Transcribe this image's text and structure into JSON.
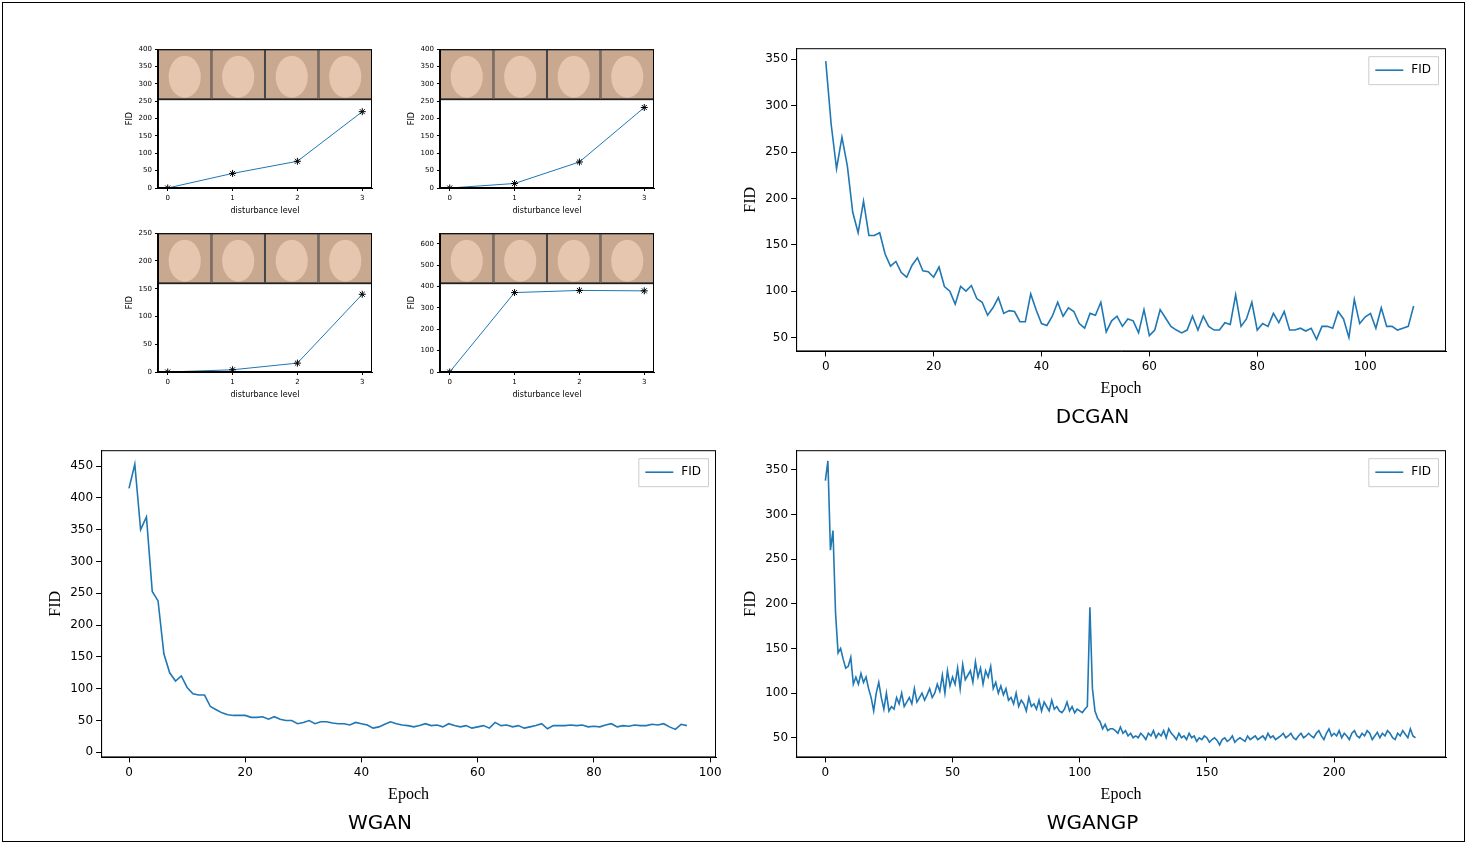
{
  "chart_data": [
    {
      "type": "line",
      "x": [
        0,
        1,
        2,
        3
      ],
      "values": [
        0,
        42,
        77,
        220
      ],
      "color": "#1f77b4",
      "marker": "star",
      "x_label": "disturbance level",
      "y_label": "FID",
      "xlim": [
        -0.15,
        3.15
      ],
      "ylim": [
        0,
        400
      ],
      "xticks": [
        0,
        1,
        2,
        3
      ],
      "yticks": [
        0,
        50,
        100,
        150,
        200,
        250,
        300,
        350,
        400
      ]
    },
    {
      "type": "line",
      "x": [
        0,
        1,
        2,
        3
      ],
      "values": [
        0,
        13,
        75,
        232
      ],
      "color": "#1f77b4",
      "marker": "star",
      "x_label": "disturbance level",
      "y_label": "FID",
      "xlim": [
        -0.15,
        3.15
      ],
      "ylim": [
        0,
        400
      ],
      "xticks": [
        0,
        1,
        2,
        3
      ],
      "yticks": [
        0,
        50,
        100,
        150,
        200,
        250,
        300,
        350,
        400
      ]
    },
    {
      "type": "line",
      "x": [
        0,
        1,
        2,
        3
      ],
      "values": [
        0,
        4,
        16,
        140
      ],
      "color": "#1f77b4",
      "marker": "star",
      "x_label": "disturbance level",
      "y_label": "FID",
      "xlim": [
        -0.15,
        3.15
      ],
      "ylim": [
        0,
        250
      ],
      "xticks": [
        0,
        1,
        2,
        3
      ],
      "yticks": [
        0,
        50,
        100,
        150,
        200,
        250
      ]
    },
    {
      "type": "line",
      "x": [
        0,
        1,
        2,
        3
      ],
      "values": [
        0,
        372,
        382,
        380
      ],
      "color": "#1f77b4",
      "marker": "star",
      "x_label": "disturbance level",
      "y_label": "FID",
      "xlim": [
        -0.15,
        3.15
      ],
      "ylim": [
        0,
        650
      ],
      "xticks": [
        0,
        1,
        2,
        3
      ],
      "yticks": [
        0,
        100,
        200,
        300,
        400,
        500,
        600
      ]
    },
    {
      "type": "line",
      "title": "DCGAN",
      "x_label": "Epoch",
      "y_label": "FID",
      "legend": "upper right",
      "xlim": [
        -5.5,
        115
      ],
      "ylim": [
        35,
        362
      ],
      "xticks": [
        0,
        20,
        40,
        60,
        80,
        100
      ],
      "yticks": [
        50,
        100,
        150,
        200,
        250,
        300,
        350
      ],
      "x": [
        0,
        1,
        2,
        3,
        4,
        5,
        6,
        7,
        8,
        9,
        10,
        11,
        12,
        13,
        14,
        15,
        16,
        17,
        18,
        19,
        20,
        21,
        22,
        23,
        24,
        25,
        26,
        27,
        28,
        29,
        30,
        31,
        32,
        33,
        34,
        35,
        36,
        37,
        38,
        39,
        40,
        41,
        42,
        43,
        44,
        45,
        46,
        47,
        48,
        49,
        50,
        51,
        52,
        53,
        54,
        55,
        56,
        57,
        58,
        59,
        60,
        61,
        62,
        63,
        64,
        65,
        66,
        67,
        68,
        69,
        70,
        71,
        72,
        73,
        74,
        75,
        76,
        77,
        78,
        79,
        80,
        81,
        82,
        83,
        84,
        85,
        86,
        87,
        88,
        89,
        90,
        91,
        92,
        93,
        94,
        95,
        96,
        97,
        98,
        99,
        100,
        101,
        102,
        103,
        104,
        105,
        106,
        107,
        108,
        109
      ],
      "series": [
        {
          "name": "FID",
          "color": "#1f77b4",
          "values": [
            348,
            280,
            232,
            266,
            235,
            185,
            163,
            197,
            160,
            160,
            163,
            140,
            127,
            132,
            120,
            115,
            128,
            136,
            122,
            121,
            115,
            126,
            105,
            100,
            86,
            105,
            100,
            106,
            92,
            88,
            74,
            82,
            93,
            76,
            79,
            78,
            67,
            67,
            97,
            80,
            65,
            63,
            73,
            88,
            73,
            82,
            78,
            65,
            60,
            76,
            74,
            88,
            56,
            68,
            73,
            62,
            70,
            68,
            55,
            80,
            52,
            58,
            80,
            71,
            62,
            58,
            55,
            58,
            73,
            58,
            73,
            62,
            58,
            58,
            66,
            64,
            96,
            62,
            70,
            88,
            58,
            65,
            62,
            76,
            66,
            78,
            58,
            58,
            60,
            57,
            60,
            48,
            62,
            62,
            60,
            78,
            70,
            50,
            91,
            65,
            72,
            76,
            60,
            82,
            62,
            62,
            58,
            60,
            62,
            84
          ]
        }
      ]
    },
    {
      "type": "line",
      "title": "WGAN",
      "x_label": "Epoch",
      "y_label": "FID",
      "legend": "upper right",
      "xlim": [
        -4.8,
        101
      ],
      "ylim": [
        -8,
        475
      ],
      "xticks": [
        0,
        20,
        40,
        60,
        80,
        100
      ],
      "yticks": [
        0,
        50,
        100,
        150,
        200,
        250,
        300,
        350,
        400,
        450
      ],
      "x": [
        0,
        1,
        2,
        3,
        4,
        5,
        6,
        7,
        8,
        9,
        10,
        11,
        12,
        13,
        14,
        15,
        16,
        17,
        18,
        19,
        20,
        21,
        22,
        23,
        24,
        25,
        26,
        27,
        28,
        29,
        30,
        31,
        32,
        33,
        34,
        35,
        36,
        37,
        38,
        39,
        40,
        41,
        42,
        43,
        44,
        45,
        46,
        47,
        48,
        49,
        50,
        51,
        52,
        53,
        54,
        55,
        56,
        57,
        58,
        59,
        60,
        61,
        62,
        63,
        64,
        65,
        66,
        67,
        68,
        69,
        70,
        71,
        72,
        73,
        74,
        75,
        76,
        77,
        78,
        79,
        80,
        81,
        82,
        83,
        84,
        85,
        86,
        87,
        88,
        89,
        90,
        91,
        92,
        93,
        94,
        95,
        96
      ],
      "series": [
        {
          "name": "FID",
          "color": "#1f77b4",
          "values": [
            415,
            453,
            350,
            370,
            253,
            238,
            155,
            125,
            112,
            120,
            102,
            92,
            90,
            90,
            72,
            67,
            62,
            59,
            58,
            58,
            58,
            55,
            55,
            56,
            52,
            56,
            52,
            50,
            50,
            45,
            47,
            50,
            45,
            48,
            48,
            46,
            45,
            45,
            43,
            47,
            45,
            43,
            38,
            40,
            44,
            48,
            45,
            43,
            42,
            40,
            42,
            45,
            42,
            43,
            40,
            45,
            42,
            40,
            42,
            38,
            40,
            42,
            38,
            47,
            42,
            43,
            40,
            42,
            38,
            40,
            42,
            45,
            37,
            42,
            42,
            42,
            43,
            42,
            43,
            40,
            41,
            40,
            43,
            45,
            40,
            42,
            41,
            43,
            42,
            42,
            44,
            43,
            45,
            40,
            36,
            44,
            42
          ]
        }
      ]
    },
    {
      "type": "line",
      "title": "WGANGP",
      "x_label": "Epoch",
      "y_label": "FID",
      "legend": "upper right",
      "xlim": [
        -11.5,
        244
      ],
      "ylim": [
        28,
        372
      ],
      "xticks": [
        0,
        50,
        100,
        150,
        200
      ],
      "yticks": [
        50,
        100,
        150,
        200,
        250,
        300,
        350
      ],
      "x": [
        0,
        1,
        2,
        3,
        4,
        5,
        6,
        7,
        8,
        9,
        10,
        11,
        12,
        13,
        14,
        15,
        16,
        17,
        18,
        19,
        20,
        21,
        22,
        23,
        24,
        25,
        26,
        27,
        28,
        29,
        30,
        31,
        32,
        33,
        34,
        35,
        36,
        37,
        38,
        39,
        40,
        41,
        42,
        43,
        44,
        45,
        46,
        47,
        48,
        49,
        50,
        51,
        52,
        53,
        54,
        55,
        56,
        57,
        58,
        59,
        60,
        61,
        62,
        63,
        64,
        65,
        66,
        67,
        68,
        69,
        70,
        71,
        72,
        73,
        74,
        75,
        76,
        77,
        78,
        79,
        80,
        81,
        82,
        83,
        84,
        85,
        86,
        87,
        88,
        89,
        90,
        91,
        92,
        93,
        94,
        95,
        96,
        97,
        98,
        99,
        100,
        101,
        102,
        103,
        104,
        105,
        106,
        107,
        108,
        109,
        110,
        111,
        112,
        113,
        114,
        115,
        116,
        117,
        118,
        119,
        120,
        121,
        122,
        123,
        124,
        125,
        126,
        127,
        128,
        129,
        130,
        131,
        132,
        133,
        134,
        135,
        136,
        137,
        138,
        139,
        140,
        141,
        142,
        143,
        144,
        145,
        146,
        147,
        148,
        149,
        150,
        151,
        152,
        153,
        154,
        155,
        156,
        157,
        158,
        159,
        160,
        161,
        162,
        163,
        164,
        165,
        166,
        167,
        168,
        169,
        170,
        171,
        172,
        173,
        174,
        175,
        176,
        177,
        178,
        179,
        180,
        181,
        182,
        183,
        184,
        185,
        186,
        187,
        188,
        189,
        190,
        191,
        192,
        193,
        194,
        195,
        196,
        197,
        198,
        199,
        200,
        201,
        202,
        203,
        204,
        205,
        206,
        207,
        208,
        209,
        210,
        211,
        212,
        213,
        214,
        215,
        216,
        217,
        218,
        219,
        220,
        221,
        222,
        223,
        224,
        225,
        226,
        227,
        228,
        229,
        230,
        231,
        232
      ],
      "series": [
        {
          "name": "FID",
          "color": "#1f77b4",
          "values": [
            338,
            360,
            260,
            282,
            190,
            145,
            150,
            138,
            128,
            130,
            140,
            110,
            118,
            110,
            122,
            112,
            118,
            105,
            95,
            80,
            100,
            112,
            95,
            82,
            100,
            80,
            85,
            82,
            95,
            88,
            100,
            85,
            90,
            95,
            88,
            105,
            90,
            95,
            100,
            92,
            98,
            105,
            95,
            100,
            110,
            102,
            120,
            100,
            125,
            108,
            118,
            110,
            128,
            105,
            132,
            115,
            120,
            125,
            112,
            135,
            118,
            128,
            110,
            125,
            118,
            130,
            105,
            112,
            100,
            108,
            98,
            105,
            92,
            95,
            88,
            100,
            85,
            92,
            88,
            80,
            95,
            85,
            88,
            82,
            92,
            80,
            90,
            85,
            80,
            92,
            82,
            85,
            80,
            78,
            82,
            90,
            80,
            85,
            78,
            82,
            80,
            78,
            82,
            85,
            196,
            105,
            80,
            72,
            68,
            60,
            65,
            58,
            60,
            60,
            58,
            55,
            62,
            55,
            58,
            52,
            55,
            50,
            52,
            50,
            55,
            52,
            48,
            55,
            52,
            58,
            50,
            55,
            52,
            58,
            50,
            60,
            55,
            52,
            48,
            55,
            50,
            52,
            48,
            55,
            50,
            52,
            46,
            50,
            48,
            52,
            50,
            45,
            48,
            50,
            47,
            42,
            48,
            50,
            46,
            48,
            52,
            45,
            48,
            50,
            48,
            46,
            52,
            48,
            50,
            52,
            48,
            50,
            52,
            48,
            55,
            50,
            52,
            48,
            50,
            52,
            55,
            50,
            52,
            55,
            50,
            48,
            52,
            55,
            50,
            52,
            55,
            52,
            50,
            55,
            58,
            52,
            48,
            55,
            60,
            52,
            55,
            52,
            58,
            50,
            55,
            52,
            48,
            55,
            58,
            52,
            50,
            55,
            52,
            58,
            55,
            48,
            52,
            56,
            50,
            55,
            52,
            58,
            55,
            50,
            48,
            55,
            52,
            58,
            54,
            50,
            60,
            52,
            50
          ]
        }
      ]
    }
  ]
}
